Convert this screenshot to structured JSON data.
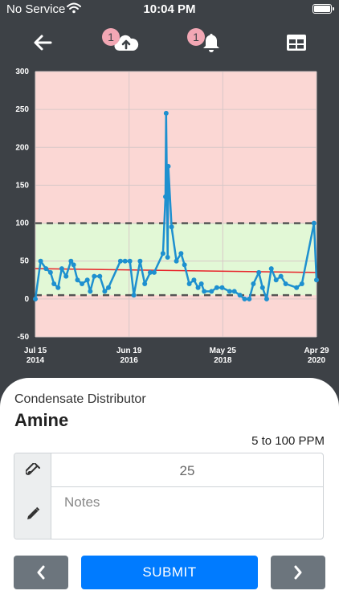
{
  "status_bar": {
    "carrier": "No Service",
    "time": "10:04 PM"
  },
  "toolbar": {
    "upload_badge": "1",
    "alert_badge": "1"
  },
  "chart_data": {
    "type": "line",
    "ylim": [
      -50,
      300
    ],
    "y_ticks": [
      300,
      250,
      200,
      150,
      100,
      50,
      0,
      -50
    ],
    "x_ticks": [
      {
        "label1": "Jul 15",
        "label2": "2014",
        "date": "2014-07-15"
      },
      {
        "label1": "Jun 19",
        "label2": "2016",
        "date": "2016-06-19"
      },
      {
        "label1": "May 25",
        "label2": "2018",
        "date": "2018-05-25"
      },
      {
        "label1": "Apr 29",
        "label2": "2020",
        "date": "2020-04-29"
      }
    ],
    "x_range": [
      "2014-07-15",
      "2020-04-29"
    ],
    "target_range": [
      5,
      100
    ],
    "trend_line": [
      {
        "x": "2014-07-15",
        "y": 40
      },
      {
        "x": "2020-04-29",
        "y": 35
      }
    ],
    "grid": true,
    "colors": {
      "in_range": "#e2f8d6",
      "out_of_range": "#fbd7d4",
      "series": "#1e90cf",
      "trend": "#e8242a",
      "limits": "#555555",
      "grid": "#d8c8c8"
    },
    "series": [
      {
        "points": [
          {
            "x": "2014-07-15",
            "y": 0
          },
          {
            "x": "2014-08-24",
            "y": 50
          },
          {
            "x": "2014-10-03",
            "y": 40
          },
          {
            "x": "2014-11-06",
            "y": 35
          },
          {
            "x": "2014-12-02",
            "y": 20
          },
          {
            "x": "2015-01-02",
            "y": 15
          },
          {
            "x": "2015-01-30",
            "y": 40
          },
          {
            "x": "2015-03-03",
            "y": 30
          },
          {
            "x": "2015-04-09",
            "y": 50
          },
          {
            "x": "2015-04-29",
            "y": 45
          },
          {
            "x": "2015-05-28",
            "y": 25
          },
          {
            "x": "2015-07-01",
            "y": 20
          },
          {
            "x": "2015-08-10",
            "y": 25
          },
          {
            "x": "2015-09-01",
            "y": 10
          },
          {
            "x": "2015-10-01",
            "y": 30
          },
          {
            "x": "2015-11-12",
            "y": 30
          },
          {
            "x": "2015-12-19",
            "y": 10
          },
          {
            "x": "2016-01-16",
            "y": 15
          },
          {
            "x": "2016-04-15",
            "y": 50
          },
          {
            "x": "2016-05-20",
            "y": 50
          },
          {
            "x": "2016-06-25",
            "y": 50
          },
          {
            "x": "2016-07-25",
            "y": 5
          },
          {
            "x": "2016-09-10",
            "y": 50
          },
          {
            "x": "2016-10-15",
            "y": 20
          },
          {
            "x": "2016-11-25",
            "y": 35
          },
          {
            "x": "2016-12-25",
            "y": 35
          },
          {
            "x": "2017-03-01",
            "y": 60
          },
          {
            "x": "2017-03-20",
            "y": 135
          },
          {
            "x": "2017-03-25",
            "y": 245
          },
          {
            "x": "2017-04-05",
            "y": 55
          },
          {
            "x": "2017-04-10",
            "y": 175
          },
          {
            "x": "2017-05-05",
            "y": 95
          },
          {
            "x": "2017-06-10",
            "y": 50
          },
          {
            "x": "2017-07-15",
            "y": 60
          },
          {
            "x": "2017-08-10",
            "y": 45
          },
          {
            "x": "2017-09-15",
            "y": 20
          },
          {
            "x": "2017-10-20",
            "y": 25
          },
          {
            "x": "2017-11-20",
            "y": 15
          },
          {
            "x": "2017-12-15",
            "y": 20
          },
          {
            "x": "2018-01-05",
            "y": 10
          },
          {
            "x": "2018-03-01",
            "y": 10
          },
          {
            "x": "2018-04-10",
            "y": 15
          },
          {
            "x": "2018-05-20",
            "y": 15
          },
          {
            "x": "2018-07-15",
            "y": 10
          },
          {
            "x": "2018-08-20",
            "y": 10
          },
          {
            "x": "2018-10-01",
            "y": 5
          },
          {
            "x": "2018-11-05",
            "y": 0
          },
          {
            "x": "2018-12-10",
            "y": 0
          },
          {
            "x": "2019-01-10",
            "y": 20
          },
          {
            "x": "2019-02-20",
            "y": 35
          },
          {
            "x": "2019-03-20",
            "y": 15
          },
          {
            "x": "2019-04-20",
            "y": 0
          },
          {
            "x": "2019-05-25",
            "y": 40
          },
          {
            "x": "2019-06-30",
            "y": 25
          },
          {
            "x": "2019-08-05",
            "y": 30
          },
          {
            "x": "2019-09-10",
            "y": 20
          },
          {
            "x": "2019-12-01",
            "y": 15
          },
          {
            "x": "2020-01-10",
            "y": 20
          },
          {
            "x": "2020-04-10",
            "y": 100
          },
          {
            "x": "2020-04-29",
            "y": 25
          }
        ]
      }
    ]
  },
  "reading": {
    "location": "Condensate Distributor",
    "parameter": "Amine",
    "range": "5 to 100 PPM",
    "value": "25",
    "notes_placeholder": "Notes"
  },
  "buttons": {
    "submit_label": "SUBMIT"
  }
}
